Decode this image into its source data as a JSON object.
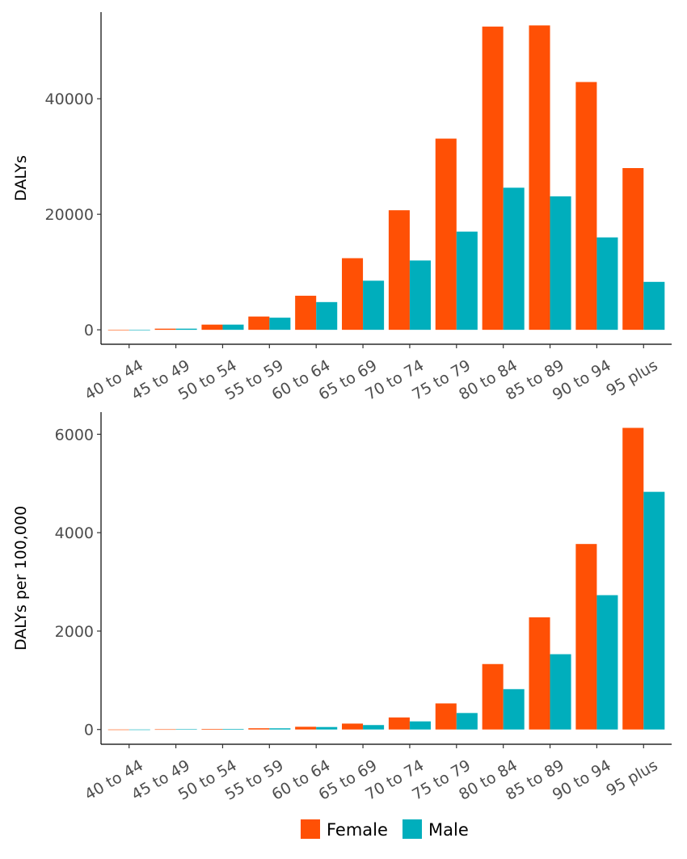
{
  "colors": {
    "Female": "#FF5005",
    "Male": "#00AEBC"
  },
  "legend": {
    "position": "bottom",
    "items": [
      {
        "name": "Female",
        "color": "#FF5005"
      },
      {
        "name": "Male",
        "color": "#00AEBC"
      }
    ]
  },
  "chart_data": [
    {
      "type": "bar",
      "ylabel": "DALYs",
      "xlabel": "",
      "ylim": [
        -2500,
        55000
      ],
      "yticks": [
        0,
        20000,
        40000
      ],
      "categories": [
        "40 to 44",
        "45 to 49",
        "50 to 54",
        "55 to 59",
        "60 to 64",
        "65 to 69",
        "70 to 74",
        "75 to 79",
        "80 to 84",
        "85 to 89",
        "90 to 94",
        "95 plus"
      ],
      "series": [
        {
          "name": "Female",
          "values": [
            0,
            200,
            900,
            2300,
            5900,
            12400,
            20700,
            33100,
            52500,
            52700,
            42900,
            28000
          ]
        },
        {
          "name": "Male",
          "values": [
            0,
            200,
            900,
            2100,
            4800,
            8500,
            12000,
            17000,
            24600,
            23100,
            16000,
            8300
          ]
        }
      ],
      "grid": false,
      "legend_position": "bottom"
    },
    {
      "type": "bar",
      "ylabel": "DALYs per 100,000",
      "xlabel": "",
      "ylim": [
        -300,
        6450
      ],
      "yticks": [
        0,
        2000,
        4000,
        6000
      ],
      "categories": [
        "40 to 44",
        "45 to 49",
        "50 to 54",
        "55 to 59",
        "60 to 64",
        "65 to 69",
        "70 to 74",
        "75 to 79",
        "80 to 84",
        "85 to 89",
        "90 to 94",
        "95 plus"
      ],
      "series": [
        {
          "name": "Female",
          "values": [
            0,
            4,
            12,
            25,
            55,
            120,
            245,
            530,
            1330,
            2280,
            3770,
            6130
          ]
        },
        {
          "name": "Male",
          "values": [
            0,
            5,
            12,
            24,
            50,
            90,
            165,
            335,
            820,
            1530,
            2730,
            4830
          ]
        }
      ],
      "grid": false,
      "legend_position": "bottom"
    }
  ]
}
